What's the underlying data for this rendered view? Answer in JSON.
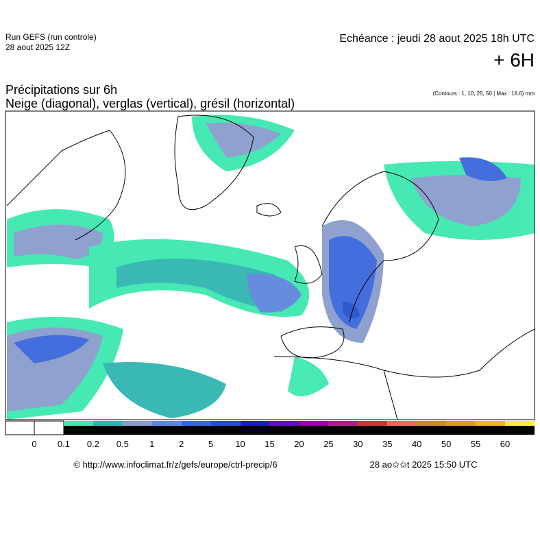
{
  "header": {
    "run": "Run GEFS (run controle)",
    "run_date": "28 aout 2025 12Z",
    "echeance": "Echéance : jeudi 28 aout 2025 18h UTC",
    "offset": "+ 6H",
    "title": "Précipitations sur 6h",
    "subtitle": "Neige (diagonal), verglas (vertical), grésil (horizontal)",
    "contours": "(Contours : 1, 10, 25, 50 | Max : 18.6) mm"
  },
  "legend": {
    "labels": [
      "0",
      "0.1",
      "0.2",
      "0.5",
      "1",
      "2",
      "5",
      "10",
      "15",
      "20",
      "25",
      "30",
      "35",
      "40",
      "50",
      "55",
      "60"
    ],
    "colors": [
      "#3de8b0",
      "#2fb5b0",
      "#8a9ccc",
      "#5f86dc",
      "#3a66dc",
      "#2550cc",
      "#1a1ad0",
      "#6010c0",
      "#9a00aa",
      "#aa2288",
      "#c83838",
      "#ea6a55",
      "#c98a38",
      "#dc9a20",
      "#ecba12",
      "#fff030"
    ]
  },
  "footer": {
    "url": "© http://www.infoclimat.fr/z/gefs/europe/ctrl-precip/6",
    "timestamp": "28 ao✩✩t 2025 15:50 UTC"
  }
}
